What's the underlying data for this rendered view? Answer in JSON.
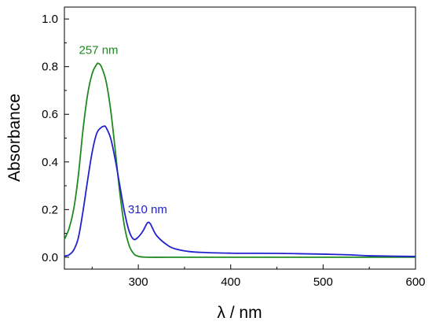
{
  "chart_data": {
    "type": "line",
    "xlabel": "λ / nm",
    "ylabel": "Absorbance",
    "xlim": [
      220,
      600
    ],
    "ylim": [
      -0.05,
      1.05
    ],
    "x_ticks": [
      300,
      400,
      500,
      600
    ],
    "y_ticks": [
      0.0,
      0.2,
      0.4,
      0.6,
      0.8,
      1.0
    ],
    "y_tick_labels": [
      "0.0",
      "0.2",
      "0.4",
      "0.6",
      "0.8",
      "1.0"
    ],
    "grid": false,
    "legend": "none",
    "series": [
      {
        "color": "#1f8a1f",
        "points": [
          [
            220,
            0.075
          ],
          [
            225,
            0.12
          ],
          [
            230,
            0.2
          ],
          [
            235,
            0.34
          ],
          [
            240,
            0.53
          ],
          [
            245,
            0.68
          ],
          [
            250,
            0.77
          ],
          [
            255,
            0.81
          ],
          [
            257,
            0.813
          ],
          [
            260,
            0.8
          ],
          [
            265,
            0.74
          ],
          [
            270,
            0.62
          ],
          [
            275,
            0.45
          ],
          [
            280,
            0.27
          ],
          [
            285,
            0.13
          ],
          [
            290,
            0.05
          ],
          [
            295,
            0.015
          ],
          [
            300,
            0.004
          ],
          [
            310,
            0.0
          ],
          [
            350,
            0.0
          ],
          [
            400,
            0.0
          ],
          [
            450,
            0.0
          ],
          [
            500,
            0.0
          ],
          [
            550,
            0.0
          ],
          [
            600,
            0.0
          ]
        ]
      },
      {
        "color": "#2222cc",
        "points": [
          [
            220,
            0.005
          ],
          [
            225,
            0.01
          ],
          [
            230,
            0.03
          ],
          [
            235,
            0.08
          ],
          [
            240,
            0.19
          ],
          [
            245,
            0.32
          ],
          [
            250,
            0.44
          ],
          [
            255,
            0.52
          ],
          [
            260,
            0.545
          ],
          [
            263,
            0.55
          ],
          [
            265,
            0.545
          ],
          [
            270,
            0.5
          ],
          [
            275,
            0.41
          ],
          [
            280,
            0.3
          ],
          [
            285,
            0.19
          ],
          [
            290,
            0.11
          ],
          [
            295,
            0.075
          ],
          [
            300,
            0.085
          ],
          [
            305,
            0.11
          ],
          [
            310,
            0.145
          ],
          [
            313,
            0.14
          ],
          [
            315,
            0.125
          ],
          [
            320,
            0.09
          ],
          [
            330,
            0.055
          ],
          [
            340,
            0.035
          ],
          [
            360,
            0.022
          ],
          [
            400,
            0.017
          ],
          [
            450,
            0.016
          ],
          [
            500,
            0.013
          ],
          [
            530,
            0.01
          ],
          [
            550,
            0.006
          ],
          [
            600,
            0.003
          ]
        ]
      }
    ],
    "annotations": [
      {
        "text": "257 nm",
        "x": 257,
        "y": 0.813,
        "color": "#1f8a1f"
      },
      {
        "text": "310 nm",
        "x": 310,
        "y": 0.145,
        "color": "#2222cc"
      }
    ]
  }
}
